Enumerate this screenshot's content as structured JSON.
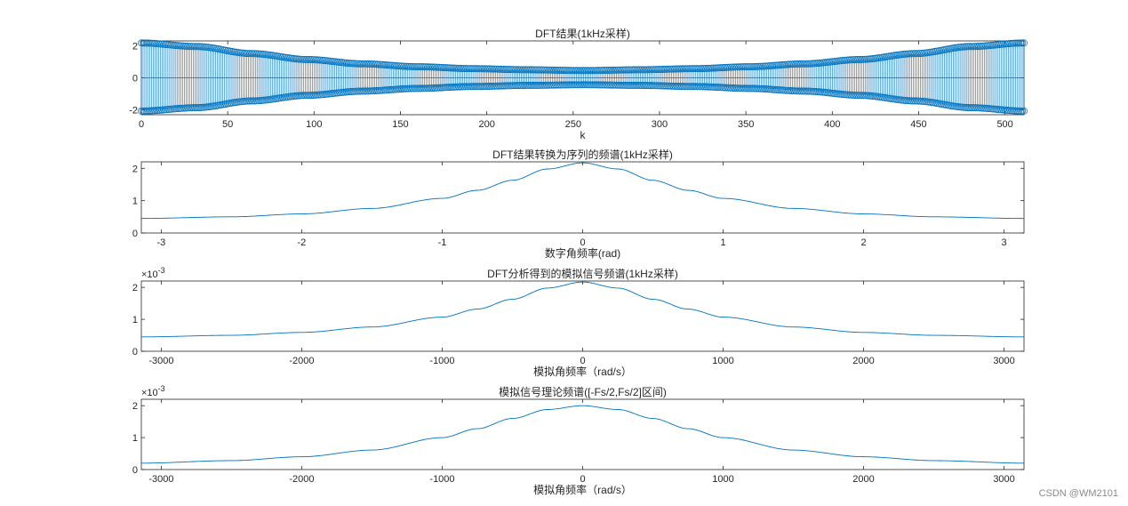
{
  "watermark": "CSDN @WM2101",
  "chart_data": [
    {
      "type": "stem",
      "title": "DFT结果(1kHz采样)",
      "xlabel": "k",
      "ylabel": "",
      "xlim": [
        0,
        511
      ],
      "ylim": [
        -2.3,
        2.3
      ],
      "xticks": [
        0,
        50,
        100,
        150,
        200,
        250,
        300,
        350,
        400,
        450,
        500
      ],
      "yticks": [
        -2,
        0,
        2
      ],
      "multiplier": "",
      "n_points": 512,
      "series": [
        {
          "x": [
            0,
            32,
            64,
            96,
            128,
            160,
            192,
            224,
            256,
            288,
            320,
            352,
            384,
            416,
            448,
            480,
            511
          ],
          "values": [
            2.17,
            1.95,
            1.51,
            1.14,
            0.87,
            0.69,
            0.57,
            0.5,
            0.45,
            0.5,
            0.57,
            0.69,
            0.87,
            1.14,
            1.51,
            1.95,
            2.17
          ]
        },
        {
          "x": [
            0,
            32,
            64,
            96,
            128,
            160,
            192,
            224,
            256,
            288,
            320,
            352,
            384,
            416,
            448,
            480,
            511
          ],
          "values": [
            -2.07,
            -1.86,
            -1.44,
            -1.09,
            -0.83,
            -0.66,
            -0.54,
            -0.47,
            -0.43,
            -0.47,
            -0.54,
            -0.66,
            -0.83,
            -1.09,
            -1.44,
            -1.86,
            -2.07
          ]
        }
      ]
    },
    {
      "type": "line",
      "title": "DFT结果转换为序列的频谱(1kHz采样)",
      "xlabel": "数字角频率(rad)",
      "ylabel": "",
      "xlim": [
        -3.1416,
        3.1416
      ],
      "ylim": [
        0,
        2.2
      ],
      "xticks": [
        -3,
        -2,
        -1,
        0,
        1,
        2,
        3
      ],
      "yticks": [
        0,
        1,
        2
      ],
      "multiplier": "",
      "series": [
        {
          "x": [
            -3.14,
            -2.5,
            -2.0,
            -1.5,
            -1.0,
            -0.75,
            -0.5,
            -0.25,
            0,
            0.25,
            0.5,
            0.75,
            1.0,
            1.5,
            2.0,
            2.5,
            3.14
          ],
          "values": [
            0.45,
            0.5,
            0.59,
            0.76,
            1.07,
            1.32,
            1.63,
            1.98,
            2.17,
            1.98,
            1.63,
            1.32,
            1.07,
            0.76,
            0.59,
            0.5,
            0.45
          ]
        }
      ]
    },
    {
      "type": "line",
      "title": "DFT分析得到的模拟信号频谱(1kHz采样)",
      "xlabel": "模拟角频率（rad/s）",
      "ylabel": "",
      "xlim": [
        -3142,
        3142
      ],
      "ylim": [
        0,
        2.2
      ],
      "xticks": [
        -3000,
        -2000,
        -1000,
        0,
        1000,
        2000,
        3000
      ],
      "yticks": [
        0,
        1,
        2
      ],
      "multiplier": "×10^{-3}",
      "series": [
        {
          "x": [
            -3140,
            -2500,
            -2000,
            -1500,
            -1000,
            -750,
            -500,
            -250,
            0,
            250,
            500,
            750,
            1000,
            1500,
            2000,
            2500,
            3140
          ],
          "values": [
            0.45,
            0.5,
            0.59,
            0.76,
            1.07,
            1.32,
            1.63,
            1.98,
            2.17,
            1.98,
            1.63,
            1.32,
            1.07,
            0.76,
            0.59,
            0.5,
            0.45
          ]
        }
      ]
    },
    {
      "type": "line",
      "title": "模拟信号理论频谱([-Fs/2,Fs/2]区间)",
      "xlabel": "模拟角频率（rad/s）",
      "ylabel": "",
      "xlim": [
        -3142,
        3142
      ],
      "ylim": [
        0,
        2.2
      ],
      "xticks": [
        -3000,
        -2000,
        -1000,
        0,
        1000,
        2000,
        3000
      ],
      "yticks": [
        0,
        1,
        2
      ],
      "multiplier": "×10^{-3}",
      "series": [
        {
          "x": [
            -3140,
            -2500,
            -2000,
            -1500,
            -1000,
            -750,
            -500,
            -250,
            0,
            250,
            500,
            750,
            1000,
            1500,
            2000,
            2500,
            3140
          ],
          "values": [
            0.2,
            0.28,
            0.4,
            0.61,
            1.0,
            1.28,
            1.6,
            1.88,
            2.0,
            1.88,
            1.6,
            1.28,
            1.0,
            0.61,
            0.4,
            0.28,
            0.2
          ]
        }
      ]
    }
  ]
}
